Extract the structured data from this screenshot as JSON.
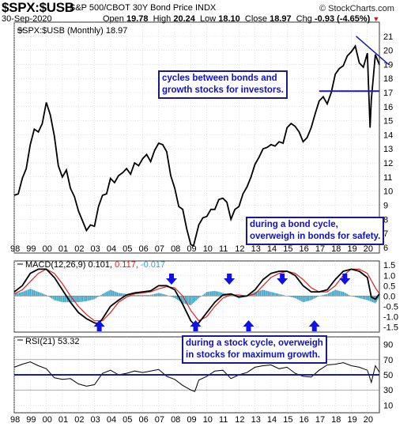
{
  "header": {
    "ticker": "$SPX:$USB",
    "name": "S&P 500/CBOT 30Y Bond Price INDX",
    "date": "30-Sep-2020",
    "open_label": "Open",
    "open": "19.78",
    "high_label": "High",
    "high": "20.24",
    "low_label": "Low",
    "low": "18.10",
    "close_label": "Close",
    "close": "18.97",
    "chg_label": "Chg",
    "chg": "-0.93 (-4.65%)",
    "chg_arrow": "▼",
    "site": "© StockCharts.com"
  },
  "annotations": {
    "a1": [
      "cycles between bonds and",
      "growth stocks for investors."
    ],
    "a2": [
      "during a bond cycle,",
      "overweigh in bonds for safety."
    ],
    "a3": [
      "during a stock cycle, overweigh",
      "in stocks for maximum growth."
    ]
  },
  "colors": {
    "price": "#000000",
    "macd": "#000000",
    "signal": "#e02020",
    "histogram": "#3aa6c8",
    "arrow": "#1010e8",
    "hline": "#1a1ab0",
    "rsi": "#000000",
    "grid": "#cfcfcf"
  },
  "chart_data": [
    {
      "type": "line",
      "panel": "price",
      "legend": "$SPX:$USB (Monthly) 18.97",
      "ylim": [
        5.6,
        22
      ],
      "yticks": [
        6,
        7,
        8,
        9,
        10,
        11,
        12,
        13,
        14,
        15,
        16,
        17,
        18,
        19,
        20,
        21
      ],
      "xticks": [
        "98",
        "99",
        "00",
        "01",
        "02",
        "03",
        "04",
        "05",
        "06",
        "07",
        "08",
        "09",
        "10",
        "11",
        "12",
        "13",
        "14",
        "15",
        "16",
        "17",
        "18",
        "19",
        "20"
      ],
      "x_range": [
        1998.0,
        2020.75
      ],
      "series": [
        {
          "x": [
            1998.0,
            1998.25,
            1998.5,
            1998.75,
            1999.0,
            1999.25,
            1999.5,
            1999.75,
            2000.0,
            2000.25,
            2000.5,
            2000.75,
            2001.0,
            2001.25,
            2001.5,
            2001.75,
            2002.0,
            2002.25,
            2002.5,
            2002.75,
            2003.0,
            2003.25,
            2003.5,
            2003.75,
            2004.0,
            2004.25,
            2004.5,
            2004.75,
            2005.0,
            2005.25,
            2005.5,
            2005.75,
            2006.0,
            2006.25,
            2006.5,
            2006.75,
            2007.0,
            2007.25,
            2007.5,
            2007.75,
            2008.0,
            2008.25,
            2008.5,
            2008.75,
            2009.0,
            2009.17,
            2009.5,
            2009.75,
            2010.0,
            2010.25,
            2010.5,
            2010.75,
            2011.0,
            2011.25,
            2011.5,
            2011.75,
            2012.0,
            2012.25,
            2012.5,
            2012.75,
            2013.0,
            2013.25,
            2013.5,
            2013.75,
            2014.0,
            2014.25,
            2014.5,
            2014.75,
            2015.0,
            2015.25,
            2015.5,
            2015.75,
            2016.0,
            2016.25,
            2016.5,
            2016.75,
            2017.0,
            2017.25,
            2017.5,
            2017.75,
            2018.0,
            2018.25,
            2018.5,
            2018.75,
            2019.0,
            2019.25,
            2019.5,
            2019.75,
            2020.0,
            2020.17,
            2020.25,
            2020.5,
            2020.75
          ],
          "y": [
            9.7,
            9.8,
            10.9,
            11.6,
            13.3,
            14.4,
            14.2,
            14.8,
            16.3,
            15.4,
            13.9,
            11.8,
            11.0,
            11.5,
            10.2,
            9.6,
            8.6,
            7.9,
            7.2,
            7.6,
            7.5,
            8.9,
            9.7,
            9.8,
            10.9,
            10.6,
            11.1,
            11.3,
            11.6,
            11.2,
            12.0,
            11.8,
            12.3,
            12.6,
            12.1,
            12.9,
            13.4,
            13.3,
            12.8,
            11.1,
            10.2,
            8.9,
            8.7,
            7.3,
            6.2,
            6.1,
            7.6,
            8.1,
            8.2,
            8.7,
            8.7,
            9.4,
            9.5,
            9.2,
            8.0,
            8.7,
            8.9,
            9.8,
            10.3,
            11.0,
            11.9,
            12.4,
            13.0,
            13.1,
            13.3,
            13.2,
            13.5,
            13.4,
            14.5,
            14.8,
            14.6,
            14.2,
            13.5,
            13.8,
            14.5,
            15.5,
            16.4,
            16.7,
            16.2,
            17.0,
            18.3,
            18.7,
            18.9,
            19.6,
            19.9,
            20.3,
            19.1,
            18.8,
            19.8,
            14.5,
            16.5,
            19.7,
            18.97
          ]
        }
      ],
      "horizontal_line": 17.1,
      "trendline": {
        "x": [
          2019.3,
          2020.75
        ],
        "y": [
          21.0,
          19.2
        ]
      }
    },
    {
      "type": "line",
      "panel": "macd",
      "legend": [
        "MACD(12,26,9)",
        "0.101",
        "0.117",
        "-0.017"
      ],
      "ylim": [
        -1.75,
        1.7
      ],
      "yticks": [
        1.5,
        1.0,
        0.5,
        0.0,
        -0.5,
        -1.0,
        -1.5
      ],
      "series": [
        {
          "name": "MACD(12,26,9)",
          "x": [
            1998.0,
            1998.5,
            1999.0,
            1999.5,
            2000.0,
            2000.5,
            2001.0,
            2001.5,
            2002.0,
            2002.5,
            2003.0,
            2003.25,
            2003.5,
            2004.0,
            2004.5,
            2005.0,
            2005.5,
            2006.0,
            2006.5,
            2007.0,
            2007.5,
            2008.0,
            2008.5,
            2009.0,
            2009.25,
            2009.5,
            2010.0,
            2010.5,
            2011.0,
            2011.5,
            2012.0,
            2012.5,
            2013.0,
            2013.5,
            2014.0,
            2014.5,
            2015.0,
            2015.5,
            2016.0,
            2016.5,
            2017.0,
            2017.5,
            2018.0,
            2018.5,
            2019.0,
            2019.5,
            2020.0,
            2020.25,
            2020.5,
            2020.75
          ],
          "y": [
            0.2,
            0.5,
            1.1,
            1.3,
            1.3,
            0.9,
            0.3,
            -0.3,
            -0.8,
            -1.1,
            -1.3,
            -1.35,
            -1.1,
            -0.5,
            -0.2,
            0.05,
            0.15,
            0.2,
            0.25,
            0.5,
            0.5,
            0.3,
            -0.4,
            -1.2,
            -1.4,
            -1.3,
            -0.8,
            -0.3,
            0.05,
            0.1,
            -0.05,
            0.0,
            0.3,
            0.8,
            1.1,
            1.2,
            1.2,
            1.0,
            0.5,
            0.2,
            0.2,
            0.3,
            0.8,
            1.2,
            1.3,
            1.2,
            0.9,
            -0.05,
            -0.15,
            0.101
          ]
        },
        {
          "name": "signal",
          "x": [
            1998.0,
            1998.5,
            1999.0,
            1999.5,
            2000.0,
            2000.5,
            2001.0,
            2001.5,
            2002.0,
            2002.5,
            2003.0,
            2003.5,
            2004.0,
            2004.5,
            2005.0,
            2005.5,
            2006.0,
            2006.5,
            2007.0,
            2007.5,
            2008.0,
            2008.5,
            2009.0,
            2009.5,
            2010.0,
            2010.5,
            2011.0,
            2011.5,
            2012.0,
            2012.5,
            2013.0,
            2013.5,
            2014.0,
            2014.5,
            2015.0,
            2015.5,
            2016.0,
            2016.5,
            2017.0,
            2017.5,
            2018.0,
            2018.5,
            2019.0,
            2019.5,
            2020.0,
            2020.5,
            2020.75
          ],
          "y": [
            0.1,
            0.3,
            0.7,
            1.1,
            1.3,
            1.1,
            0.6,
            0.0,
            -0.5,
            -0.9,
            -1.2,
            -1.2,
            -0.8,
            -0.3,
            -0.05,
            0.1,
            0.15,
            0.2,
            0.35,
            0.45,
            0.4,
            0.0,
            -0.7,
            -1.2,
            -1.0,
            -0.5,
            -0.1,
            0.05,
            0.05,
            0.0,
            0.1,
            0.5,
            0.9,
            1.1,
            1.2,
            1.1,
            0.8,
            0.4,
            0.2,
            0.2,
            0.5,
            1.0,
            1.3,
            1.3,
            1.1,
            0.4,
            0.117
          ]
        }
      ],
      "histogram": {
        "x": [
          1998.0,
          1998.5,
          1999.0,
          1999.5,
          2000.0,
          2000.5,
          2001.0,
          2001.5,
          2002.0,
          2002.5,
          2003.0,
          2003.5,
          2004.0,
          2004.5,
          2005.0,
          2005.5,
          2006.0,
          2006.5,
          2007.0,
          2007.5,
          2008.0,
          2008.5,
          2009.0,
          2009.5,
          2010.0,
          2010.5,
          2011.0,
          2011.5,
          2012.0,
          2012.5,
          2013.0,
          2013.5,
          2014.0,
          2014.5,
          2015.0,
          2015.5,
          2016.0,
          2016.5,
          2017.0,
          2017.5,
          2018.0,
          2018.5,
          2019.0,
          2019.5,
          2020.0,
          2020.5,
          2020.75
        ],
        "y": [
          0.1,
          0.2,
          0.35,
          0.2,
          0.05,
          -0.2,
          -0.3,
          -0.3,
          -0.3,
          -0.25,
          -0.15,
          0.1,
          0.3,
          0.15,
          0.1,
          0.05,
          0.05,
          0.05,
          0.15,
          0.05,
          -0.1,
          -0.35,
          -0.45,
          -0.1,
          0.2,
          0.25,
          0.15,
          0.05,
          -0.1,
          0.0,
          0.2,
          0.3,
          0.2,
          0.1,
          0.0,
          -0.1,
          -0.3,
          -0.2,
          0.0,
          0.1,
          0.3,
          0.2,
          0.0,
          -0.1,
          -0.2,
          -0.35,
          -0.017
        ]
      },
      "arrows": [
        {
          "x": 2003.3,
          "dir": "up"
        },
        {
          "x": 2007.8,
          "dir": "down"
        },
        {
          "x": 2009.3,
          "dir": "up"
        },
        {
          "x": 2011.4,
          "dir": "down"
        },
        {
          "x": 2012.6,
          "dir": "up"
        },
        {
          "x": 2014.7,
          "dir": "down"
        },
        {
          "x": 2016.7,
          "dir": "up"
        },
        {
          "x": 2018.6,
          "dir": "down"
        }
      ]
    },
    {
      "type": "line",
      "panel": "rsi",
      "legend": [
        "RSI(21)",
        "53.32"
      ],
      "ylim": [
        0,
        100
      ],
      "yticks": [
        90,
        70,
        50,
        30,
        10
      ],
      "horizontal_line": 50,
      "series": [
        {
          "name": "RSI(21)",
          "x": [
            1998.0,
            1998.5,
            1999.0,
            1999.5,
            2000.0,
            2000.5,
            2001.0,
            2001.5,
            2002.0,
            2002.5,
            2003.0,
            2003.5,
            2004.0,
            2004.5,
            2005.0,
            2005.5,
            2006.0,
            2006.5,
            2007.0,
            2007.5,
            2008.0,
            2008.5,
            2009.0,
            2009.25,
            2009.5,
            2010.0,
            2010.5,
            2011.0,
            2011.5,
            2012.0,
            2012.5,
            2013.0,
            2013.5,
            2014.0,
            2014.5,
            2015.0,
            2015.5,
            2016.0,
            2016.5,
            2017.0,
            2017.5,
            2018.0,
            2018.5,
            2019.0,
            2019.5,
            2020.0,
            2020.25,
            2020.5,
            2020.75
          ],
          "y": [
            60,
            64,
            67,
            62,
            58,
            46,
            44,
            45,
            38,
            35,
            37,
            52,
            56,
            50,
            52,
            55,
            53,
            55,
            57,
            48,
            44,
            36,
            30,
            28,
            43,
            48,
            55,
            56,
            45,
            50,
            53,
            60,
            62,
            63,
            58,
            60,
            52,
            48,
            47,
            56,
            63,
            64,
            66,
            62,
            60,
            56,
            40,
            62,
            53.32
          ]
        }
      ]
    }
  ]
}
